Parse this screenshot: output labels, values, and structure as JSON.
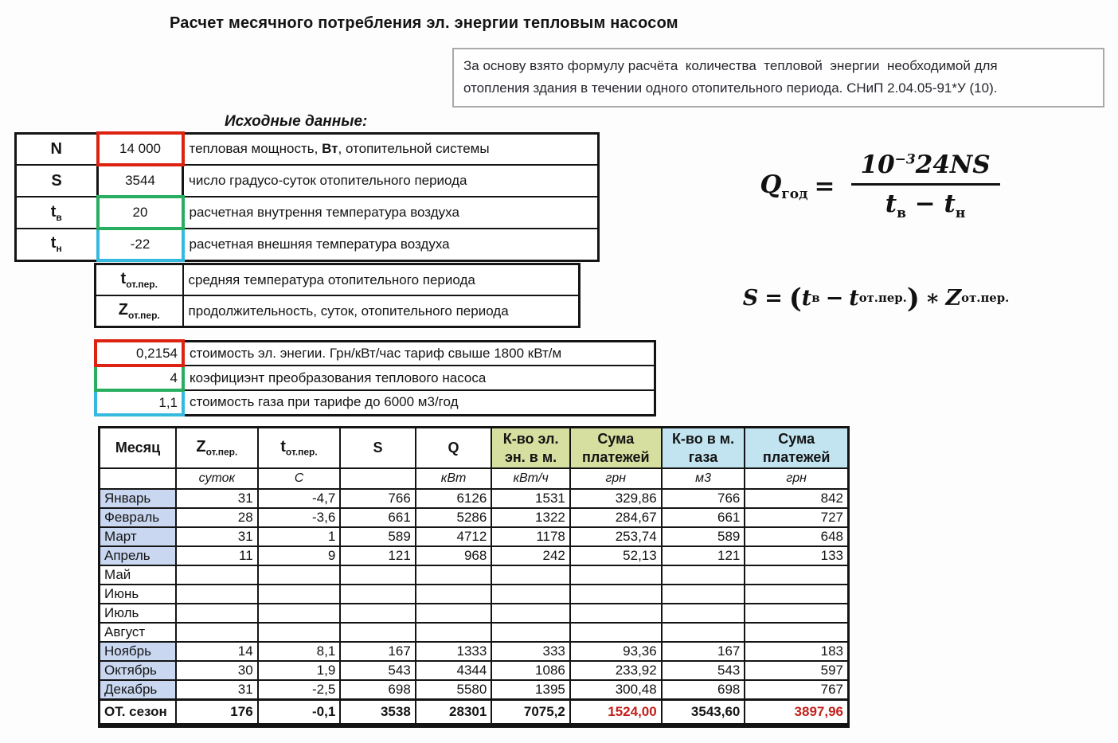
{
  "page": {
    "title": "Расчет месячного потребления эл. энергии тепловым насосом"
  },
  "note": {
    "line1": "За основу взято формулу расчёта  количества  тепловой  энергии  необходимой для",
    "line2": "отопления здания в течении одного отопительного периода. СНиП 2.04.05-91*У (10)."
  },
  "inputs": {
    "heading": "Исходные данные:",
    "rows": [
      {
        "label_main": "N",
        "label_sub": "",
        "value": "14 000",
        "box": "red",
        "desc_pre": "тепловая мощность, ",
        "desc_bold": "Вт",
        "desc_post": ", отопительной системы"
      },
      {
        "label_main": "S",
        "label_sub": "",
        "value": "3544",
        "box": "black",
        "desc_pre": "число градусо-суток отопительного периода",
        "desc_bold": "",
        "desc_post": ""
      },
      {
        "label_main": "t",
        "label_sub": "в",
        "value": "20",
        "box": "green",
        "desc_pre": "расчетная внутрення температура воздуха",
        "desc_bold": "",
        "desc_post": ""
      },
      {
        "label_main": "t",
        "label_sub": "н",
        "value": "-22",
        "box": "cyan",
        "desc_pre": "расчетная внешняя температура воздуха",
        "desc_bold": "",
        "desc_post": ""
      }
    ]
  },
  "definitions": {
    "rows": [
      {
        "label_main": "t",
        "label_sub": "от.пер.",
        "desc": "средняя температура отопительного периода"
      },
      {
        "label_main": "Z",
        "label_sub": "от.пер.",
        "desc": "продолжительность, суток, отопительного периода"
      }
    ]
  },
  "tariffs": {
    "rows": [
      {
        "value": "0,2154",
        "box": "red",
        "desc": "стоимость эл. энегии. Грн/кВт/час тариф свыше 1800 кВт/м"
      },
      {
        "value": "4",
        "box": "green",
        "desc": "коэфициэнт преобразования теплового насоса"
      },
      {
        "value": "1,1",
        "box": "cyan",
        "desc": "стоимость газа при тарифе до 6000 м3/год"
      }
    ]
  },
  "formulas": {
    "annual": {
      "lhs": "Q",
      "lhs_sub": "год",
      "eq": "=",
      "num_base": "10",
      "num_exp": "−3",
      "num_tail": "24NS",
      "den_t1": "t",
      "den_t1_sub": "в",
      "den_op": "−",
      "den_t2": "t",
      "den_t2_sub": "н"
    },
    "degree_days": {
      "lhs": "S",
      "eq": "=",
      "open": "(",
      "t1": "t",
      "t1_sub": "в",
      "op": "−",
      "t2": "t",
      "t2_sub": "от.пер.",
      "close": ")",
      "mult": "∗",
      "z": "Z",
      "z_sub": "от.пер."
    }
  },
  "monthly_table": {
    "columns": [
      {
        "main": "Месяц"
      },
      {
        "main": "Z",
        "sub": "от.пер."
      },
      {
        "main": "t",
        "sub": "от.пер."
      },
      {
        "main": "S"
      },
      {
        "main": "Q"
      },
      {
        "line1": "К-во эл.",
        "line2": "эн. в м.",
        "bg": "green"
      },
      {
        "line1": "Сума",
        "line2": "платежей",
        "bg": "green"
      },
      {
        "line1": "К-во в м.",
        "line2": "газа",
        "bg": "blue"
      },
      {
        "line1": "Сума",
        "line2": "платежей",
        "bg": "blue"
      }
    ],
    "units": [
      "",
      "суток",
      "С",
      "",
      "кВт",
      "кВт/ч",
      "грн",
      "м3",
      "грн"
    ],
    "rows": [
      {
        "month": "Январь",
        "highlight": true,
        "values": [
          "31",
          "-4,7",
          "766",
          "6126",
          "1531",
          "329,86",
          "766",
          "842"
        ]
      },
      {
        "month": "Февраль",
        "highlight": true,
        "values": [
          "28",
          "-3,6",
          "661",
          "5286",
          "1322",
          "284,67",
          "661",
          "727"
        ]
      },
      {
        "month": "Март",
        "highlight": true,
        "values": [
          "31",
          "1",
          "589",
          "4712",
          "1178",
          "253,74",
          "589",
          "648"
        ]
      },
      {
        "month": "Апрель",
        "highlight": true,
        "values": [
          "11",
          "9",
          "121",
          "968",
          "242",
          "52,13",
          "121",
          "133"
        ]
      },
      {
        "month": "Май",
        "highlight": false,
        "values": [
          "",
          "",
          "",
          "",
          "",
          "",
          "",
          ""
        ]
      },
      {
        "month": "Июнь",
        "highlight": false,
        "values": [
          "",
          "",
          "",
          "",
          "",
          "",
          "",
          ""
        ]
      },
      {
        "month": "Июль",
        "highlight": false,
        "values": [
          "",
          "",
          "",
          "",
          "",
          "",
          "",
          ""
        ]
      },
      {
        "month": "Август",
        "highlight": false,
        "values": [
          "",
          "",
          "",
          "",
          "",
          "",
          "",
          ""
        ]
      },
      {
        "month": "Ноябрь",
        "highlight": true,
        "values": [
          "14",
          "8,1",
          "167",
          "1333",
          "333",
          "93,36",
          "167",
          "183"
        ]
      },
      {
        "month": "Октябрь",
        "highlight": true,
        "values": [
          "30",
          "1,9",
          "543",
          "4344",
          "1086",
          "233,92",
          "543",
          "597"
        ]
      },
      {
        "month": "Декабрь",
        "highlight": true,
        "values": [
          "31",
          "-2,5",
          "698",
          "5580",
          "1395",
          "300,48",
          "698",
          "767"
        ]
      }
    ],
    "total": {
      "label": "ОТ. сезон",
      "values": [
        "176",
        "-0,1",
        "3538",
        "28301",
        "7075,2",
        "1524,00",
        "3543,60",
        "3897,96"
      ],
      "red_indices": [
        5,
        7
      ]
    }
  },
  "colors": {
    "box_red": "#dd2211",
    "box_black": "#141414",
    "box_green": "#27ae60",
    "box_cyan": "#36b9df",
    "header_green_bg": "#d6df9f",
    "header_blue_bg": "#c1e4f0",
    "month_highlight_bg": "#c9d7f0",
    "total_red_text": "#c4211c"
  }
}
